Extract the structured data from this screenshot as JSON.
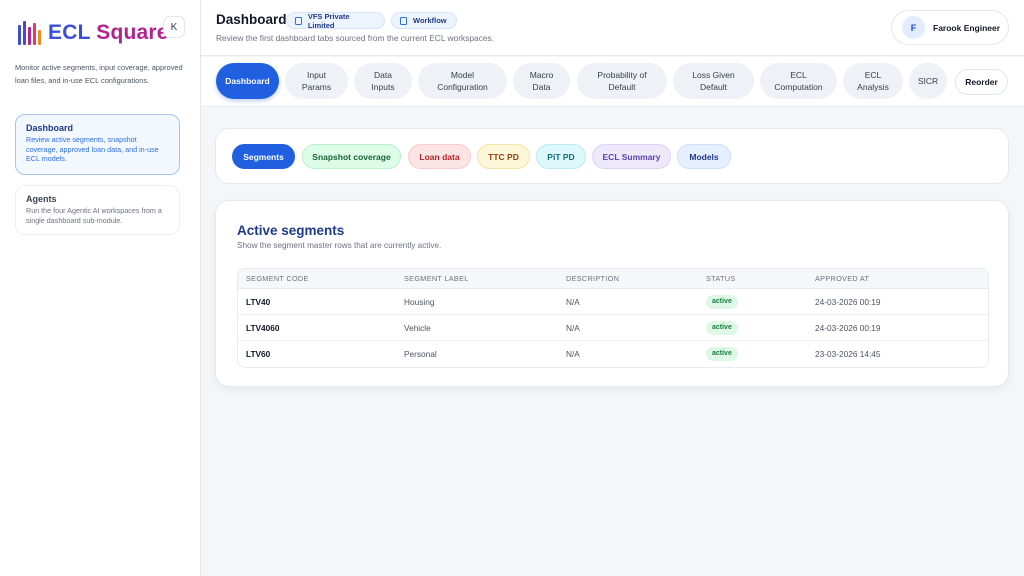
{
  "app": {
    "logo_ecl": "ECL",
    "logo_square": "Square",
    "collapse_label": "K",
    "description": "Monitor active segments, input coverage, approved loan files, and in-use ECL configurations."
  },
  "sidebar": {
    "items": [
      {
        "title": "Dashboard",
        "desc": "Review active segments, snapshot coverage, approved loan data, and in-use ECL models.",
        "active": true
      },
      {
        "title": "Agents",
        "desc": "Run the four Agentic AI workspaces from a single dashboard sub-module.",
        "active": false
      }
    ]
  },
  "header": {
    "title": "Dashboard",
    "chip_company": "VFS Private Limited",
    "chip_workflow": "Workflow",
    "subtitle": "Review the first dashboard tabs sourced from the current ECL workspaces.",
    "user_initial": "F",
    "user_name": "Farook Engineer"
  },
  "tabs": [
    {
      "label": "Dashboard",
      "active": true
    },
    {
      "label": "Input\nParams"
    },
    {
      "label": "Data\nInputs"
    },
    {
      "label": "Model\nConfiguration"
    },
    {
      "label": "Macro\nData"
    },
    {
      "label": "Probability of\nDefault"
    },
    {
      "label": "Loss Given\nDefault"
    },
    {
      "label": "ECL\nComputation"
    },
    {
      "label": "ECL\nAnalysis"
    },
    {
      "label": "SICR"
    },
    {
      "label": "Reorder"
    }
  ],
  "subtabs": [
    {
      "label": "Segments",
      "bg": "#1f5fe0",
      "fg": "#ffffff",
      "border": "#1f5fe0"
    },
    {
      "label": "Snapshot coverage",
      "bg": "#dcfce7",
      "fg": "#166534",
      "border": "#bbf0cd"
    },
    {
      "label": "Loan data",
      "bg": "#fde4e4",
      "fg": "#b42323",
      "border": "#f8cccc"
    },
    {
      "label": "TTC PD",
      "bg": "#fef6d8",
      "fg": "#92400e",
      "border": "#f6e4a8"
    },
    {
      "label": "PiT PD",
      "bg": "#ddf7fb",
      "fg": "#0f6d7d",
      "border": "#bfeaf2"
    },
    {
      "label": "ECL Summary",
      "bg": "#ede9fb",
      "fg": "#5b3fb5",
      "border": "#dcd4f6"
    },
    {
      "label": "Models",
      "bg": "#e5effd",
      "fg": "#1e3a8a",
      "border": "#cddff9"
    }
  ],
  "section": {
    "title": "Active segments",
    "subtitle": "Show the segment master rows that are currently active."
  },
  "table": {
    "headers": [
      "SEGMENT CODE",
      "SEGMENT LABEL",
      "DESCRIPTION",
      "STATUS",
      "APPROVED AT"
    ],
    "rows": [
      [
        "LTV40",
        "Housing",
        "N/A",
        "active",
        "24-03-2026 00:19"
      ],
      [
        "LTV4060",
        "Vehicle",
        "N/A",
        "active",
        "24-03-2026 00:19"
      ],
      [
        "LTV60",
        "Personal",
        "N/A",
        "active",
        "23-03-2026 14:45"
      ]
    ]
  }
}
